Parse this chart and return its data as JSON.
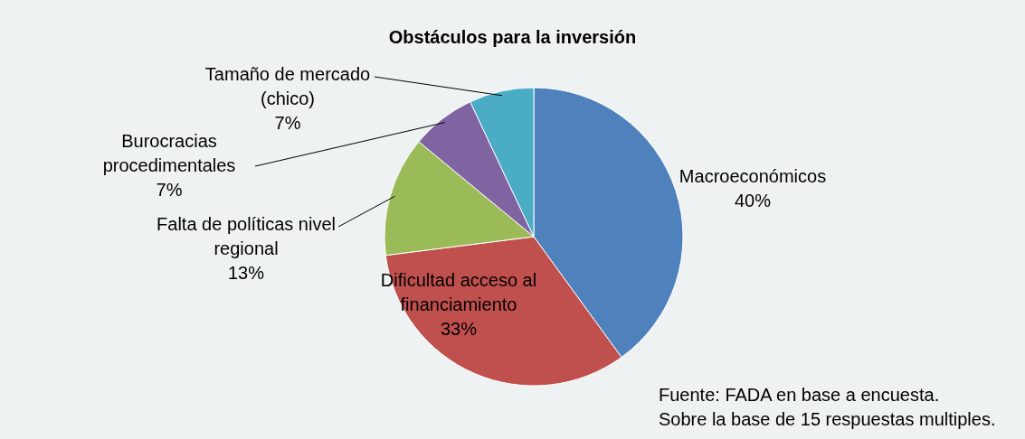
{
  "chart_data": {
    "type": "pie",
    "title": "Obstáculos para la inversión",
    "categories": [
      "Macroeconómicos",
      "Dificultad acceso al financiamiento",
      "Falta de políticas nivel regional",
      "Burocracias procedimentales",
      "Tamaño de mercado (chico)"
    ],
    "values": [
      40,
      33,
      13,
      7,
      7
    ],
    "value_labels": [
      "40%",
      "33%",
      "13%",
      "7%",
      "7%"
    ],
    "colors": [
      "#4f81bd",
      "#c0504d",
      "#9bbb59",
      "#8064a2",
      "#4bacc6"
    ],
    "annotations": [
      "Fuente: FADA en base a encuesta.",
      "Sobre la base de 15 respuestas multiples."
    ]
  }
}
